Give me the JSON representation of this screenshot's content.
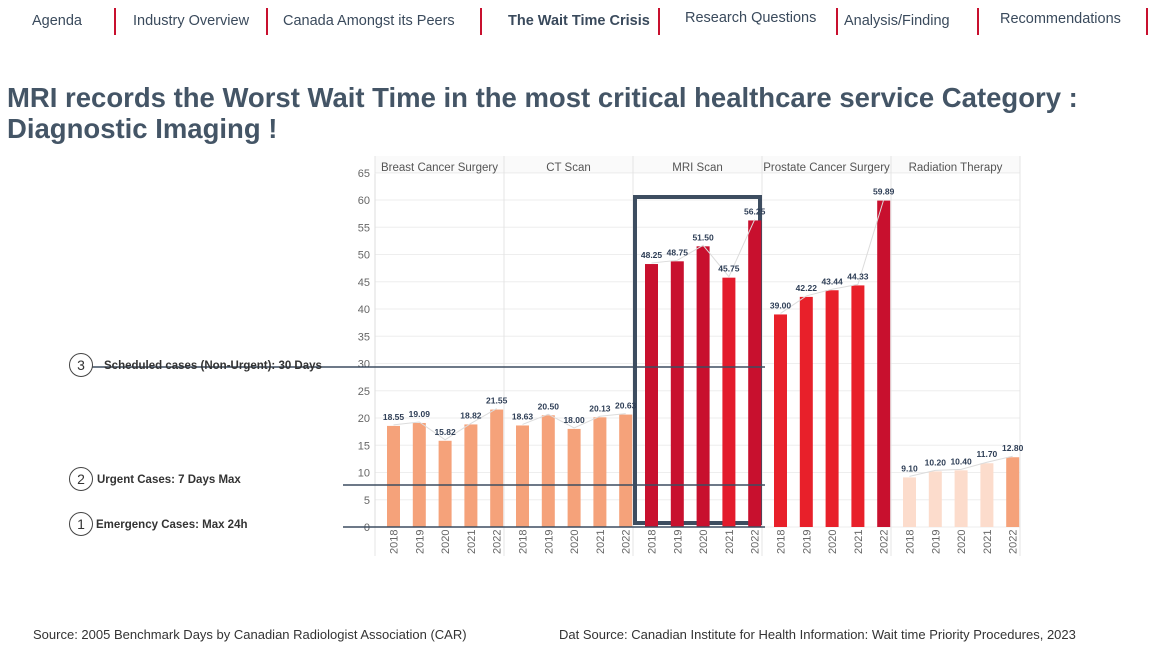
{
  "nav": {
    "items": [
      {
        "label": "Agenda",
        "active": false
      },
      {
        "label": "Industry Overview",
        "active": false
      },
      {
        "label": "Canada Amongst its Peers",
        "active": false
      },
      {
        "label": "The Wait Time Crisis",
        "active": true
      },
      {
        "label": "Research Questions",
        "active": false
      },
      {
        "label": "Analysis/Finding",
        "active": false
      },
      {
        "label": "Recommendations",
        "active": false
      }
    ]
  },
  "title": {
    "line1": "MRI records the Worst Wait Time in the most critical healthcare service Category :",
    "line2": "Diagnostic Imaging !"
  },
  "benchmarks": [
    {
      "number": "3",
      "label": "Scheduled cases (Non-Urgent): 30 Days",
      "days": 30
    },
    {
      "number": "2",
      "label": "Urgent Cases: 7 Days Max",
      "days": 7
    },
    {
      "number": "1",
      "label": "Emergency Cases: Max 24h",
      "days": 1
    }
  ],
  "footer": {
    "left": "Source: 2005 Benchmark Days by Canadian Radiologist Association (CAR)",
    "right": "Dat Source: Canadian Institute for Health Information: Wait time Priority Procedures, 2023"
  },
  "colors": {
    "nav_separator": "#c8102e",
    "title": "#445566",
    "benchmark_line": "#3d4d60",
    "highlight_box": "#3d4d60",
    "value_label": "#2e3e56"
  },
  "chart_data": {
    "type": "bar",
    "x": [
      "2018",
      "2019",
      "2020",
      "2021",
      "2022"
    ],
    "ylim": [
      0,
      65
    ],
    "yticks": [
      0,
      5,
      10,
      15,
      20,
      25,
      30,
      35,
      40,
      45,
      50,
      55,
      60,
      65
    ],
    "grid": true,
    "highlight_panel": "MRI Scan",
    "panels": [
      {
        "name": "Breast Cancer Surgery",
        "values": [
          18.55,
          19.09,
          15.82,
          18.82,
          21.55
        ],
        "labels": [
          "18.55",
          "19.09",
          "15.82",
          "18.82",
          "21.55"
        ],
        "colors": [
          "#f5a27a",
          "#f5a27a",
          "#f5a27a",
          "#f5a27a",
          "#f5a27a"
        ]
      },
      {
        "name": "CT Scan",
        "values": [
          18.63,
          20.5,
          18.0,
          20.13,
          20.63
        ],
        "labels": [
          "18.63",
          "20.50",
          "18.00",
          "20.13",
          "20.63"
        ],
        "colors": [
          "#f5a27a",
          "#f5a27a",
          "#f5a27a",
          "#f5a27a",
          "#f5a27a"
        ]
      },
      {
        "name": "MRI Scan",
        "values": [
          48.25,
          48.75,
          51.5,
          45.75,
          56.25
        ],
        "labels": [
          "48.25",
          "48.75",
          "51.50",
          "45.75",
          "56.25"
        ],
        "colors": [
          "#c8102e",
          "#c8102e",
          "#c8102e",
          "#e31b2c",
          "#c8102e"
        ]
      },
      {
        "name": "Prostate Cancer Surgery",
        "values": [
          39.0,
          42.22,
          43.44,
          44.33,
          59.89
        ],
        "labels": [
          "39.00",
          "42.22",
          "43.44",
          "44.33",
          "59.89"
        ],
        "colors": [
          "#e8202a",
          "#e8202a",
          "#e8202a",
          "#e8202a",
          "#c8102e"
        ]
      },
      {
        "name": "Radiation Therapy",
        "values": [
          9.1,
          10.2,
          10.4,
          11.7,
          12.8
        ],
        "labels": [
          "9.10",
          "10.20",
          "10.40",
          "11.70",
          "12.80"
        ],
        "colors": [
          "#fcdccc",
          "#fcdccc",
          "#fcdccc",
          "#fcdccc",
          "#f5a27a"
        ]
      }
    ]
  }
}
